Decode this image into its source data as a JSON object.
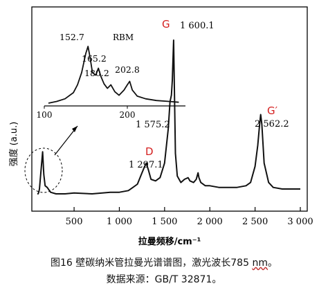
{
  "chart_data": {
    "type": "line",
    "ylabel": "强度 (a.u.)",
    "xlabel": "拉曼频移/cm⁻¹",
    "xlim": [
      0,
      3000
    ],
    "xticks": [
      {
        "value": 500,
        "label": "500"
      },
      {
        "value": 1000,
        "label": "1 000"
      },
      {
        "value": 1500,
        "label": "1 500"
      },
      {
        "value": 2000,
        "label": "2 000"
      },
      {
        "value": 2500,
        "label": "2 500"
      },
      {
        "value": 3000,
        "label": "3 000"
      }
    ],
    "x": [
      0,
      60,
      100,
      130,
      152,
      165,
      180,
      203,
      240,
      300,
      400,
      500,
      700,
      900,
      1000,
      1100,
      1150,
      1200,
      1250,
      1280,
      1297,
      1320,
      1350,
      1400,
      1450,
      1500,
      1540,
      1560,
      1575,
      1585,
      1600,
      1610,
      1620,
      1640,
      1680,
      1720,
      1760,
      1780,
      1820,
      1850,
      1870,
      1880,
      1900,
      1950,
      2000,
      2100,
      2200,
      2300,
      2400,
      2450,
      2500,
      2530,
      2550,
      2562,
      2575,
      2600,
      2650,
      2700,
      2800,
      2900,
      3000
    ],
    "y": [
      5,
      5,
      6,
      8,
      31,
      17,
      10,
      9,
      6,
      5,
      5,
      5.5,
      5,
      6,
      6,
      7,
      9,
      11,
      18,
      22,
      24,
      20,
      14,
      13,
      15,
      24,
      45,
      62,
      66,
      75,
      100,
      65,
      30,
      16,
      12,
      14,
      15,
      13,
      12,
      14,
      18,
      15,
      12,
      10,
      10,
      9,
      9,
      9,
      10,
      12,
      22,
      35,
      48,
      54,
      48,
      24,
      12,
      9,
      8,
      8,
      8
    ],
    "peaks": [
      {
        "label": "D",
        "value": "1 297.1"
      },
      {
        "label": "",
        "value": "1 575.2"
      },
      {
        "label": "G",
        "value": "1 600.1"
      },
      {
        "label": "G′",
        "value": "2 562.2"
      }
    ],
    "inset": {
      "title": "RBM",
      "xlim": [
        100,
        270
      ],
      "xticks": [
        100,
        200
      ],
      "x": [
        105,
        115,
        125,
        135,
        140,
        145,
        150,
        152.7,
        155,
        158,
        162,
        165.2,
        168,
        172,
        176,
        180.2,
        185,
        190,
        196,
        200,
        202.8,
        206,
        212,
        222,
        235,
        250,
        262
      ],
      "y": [
        5,
        7,
        10,
        17,
        26,
        40,
        62,
        70,
        58,
        40,
        37,
        45,
        36,
        27,
        22,
        26,
        18,
        14,
        20,
        26,
        30,
        20,
        13,
        10,
        8,
        7,
        6
      ],
      "peak_labels": [
        "152.7",
        "165.2",
        "180.2",
        "202.8"
      ]
    }
  },
  "caption": {
    "line1_main": "图16  壁碳纳米管拉曼光谱谱图，激光波长785 ",
    "line1_unit": "nm",
    "line1_end": "。",
    "line2": "数据来源：GB/T 32871。"
  },
  "colors": {
    "line": "#111111",
    "peak_letter": "#d42020"
  }
}
